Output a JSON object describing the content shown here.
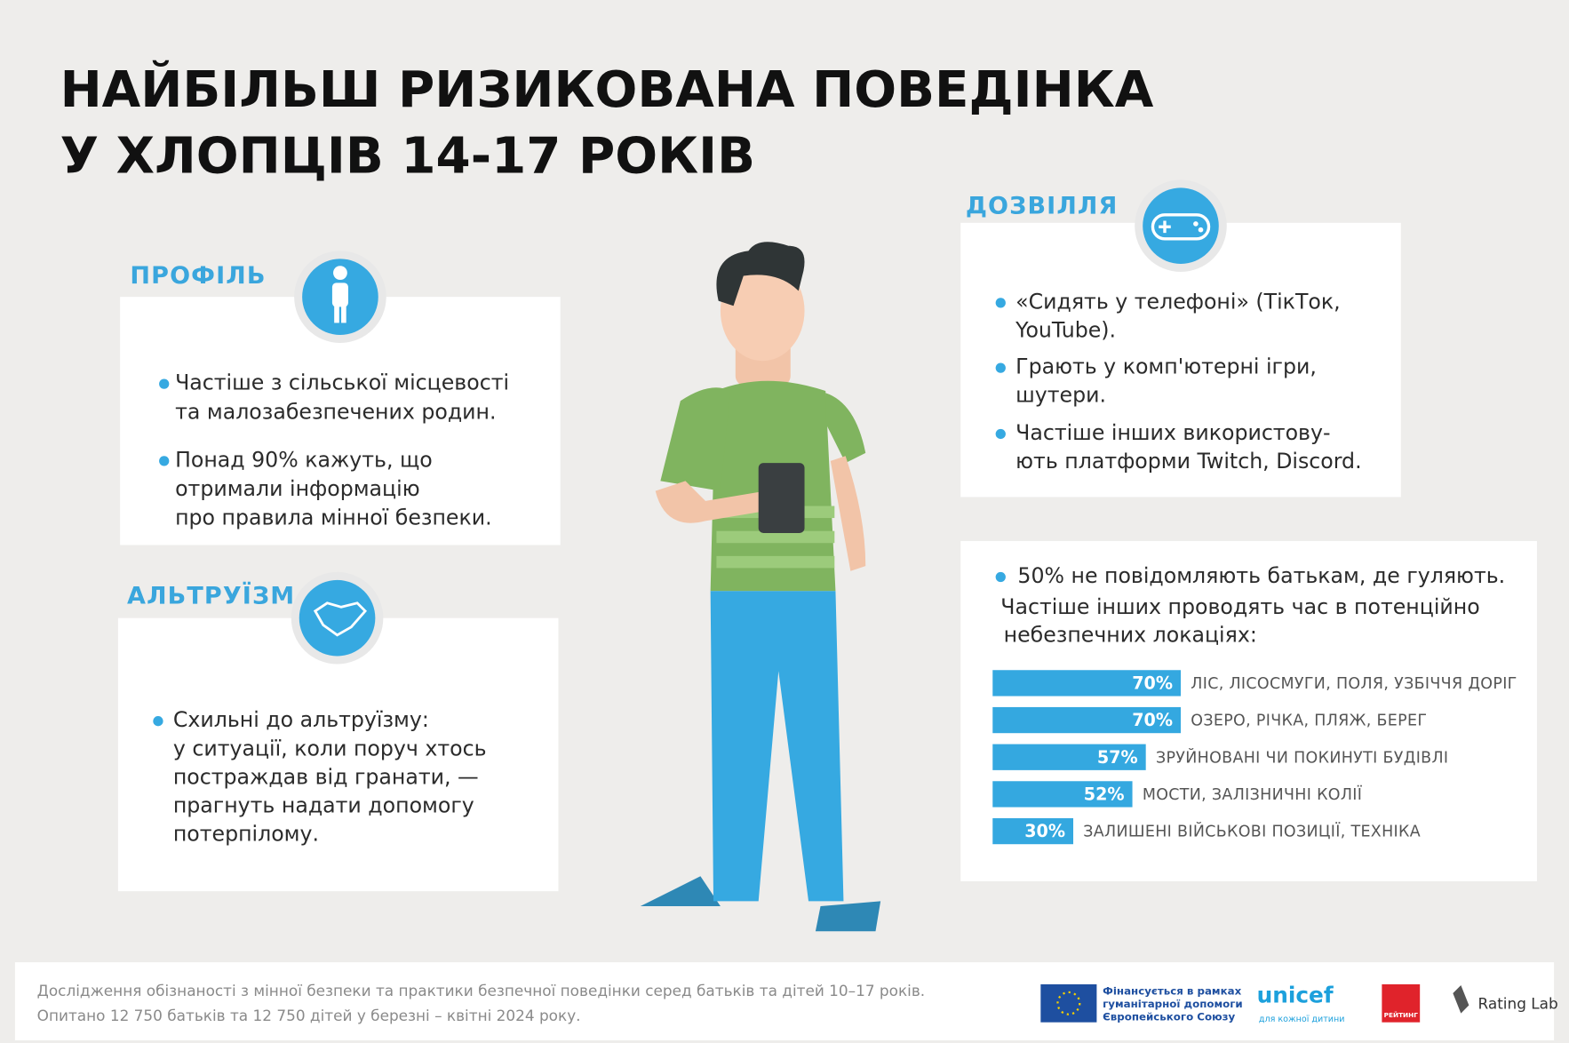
{
  "title": [
    "НАЙБІЛЬШ РИЗИКОВАНА ПОВЕДІНКА",
    "У ХЛОПЦІВ 14-17 РОКІВ"
  ],
  "profile": {
    "heading": "ПРОФІЛЬ",
    "bullets": [
      [
        "Частіше з сільської місцевості",
        " та малозабезпечених родин."
      ],
      [
        "Понад 90% кажуть, що",
        "отримали інформацію",
        "про правила мінної безпеки."
      ]
    ]
  },
  "altruism": {
    "heading": "АЛЬТРУЇЗМ",
    "bullets": [
      [
        "Схильні до альтруїзму:",
        "у ситуації, коли поруч хтось",
        "постраждав від гранати, —",
        "прагнуть надати допомогу",
        "потерпілому."
      ]
    ]
  },
  "leisure": {
    "heading": "ДОЗВІЛЛЯ",
    "bullets": [
      [
        "«Сидять у телефоні» (ТікТок,",
        "YouTube)."
      ],
      [
        "Грають у комп'ютерні ігри,",
        "шутери."
      ],
      [
        "Частіше інших використову-",
        "ють платформи Twitch, Discord."
      ]
    ]
  },
  "locations": {
    "bullet": "50% не повідомляють батькам, де гуляють.",
    "intro": [
      "Частіше інших проводять час в потенційно",
      "небезпечних локаціях:"
    ]
  },
  "chart_data": {
    "type": "bar",
    "orientation": "horizontal",
    "color": "#34a8e0",
    "categories": [
      "ЛІС, ЛІСОСМУГИ, ПОЛЯ, УЗБІЧЧЯ ДОРІГ",
      "ОЗЕРО, РІЧКА, ПЛЯЖ, БЕРЕГ",
      "ЗРУЙНОВАНІ ЧИ ПОКИНУТІ БУДІВЛІ",
      "МОСТИ, ЗАЛІЗНИЧНІ КОЛІЇ",
      "ЗАЛИШЕНІ ВІЙСЬКОВІ ПОЗИЦІЇ, ТЕХНІКА"
    ],
    "values": [
      70,
      70,
      57,
      52,
      30
    ],
    "value_labels": [
      "70%",
      "70%",
      "57%",
      "52%",
      "30%"
    ]
  },
  "footer": {
    "lines": [
      "Дослідження обізнаності з мінної безпеки та практики безпечної поведінки серед батьків та дітей 10–17 років.",
      "Опитано 12 750 батьків та 12 750 дітей у березні – квітні 2024 року."
    ],
    "eu": [
      "Фінансується в рамках",
      "гуманітарної допомоги",
      "Європейського Союзу"
    ],
    "unicef": "unicef",
    "unicef_tagline": "для кожної дитини",
    "rating": "РЕЙТИНГ",
    "ratinglab": "Rating Lab"
  }
}
